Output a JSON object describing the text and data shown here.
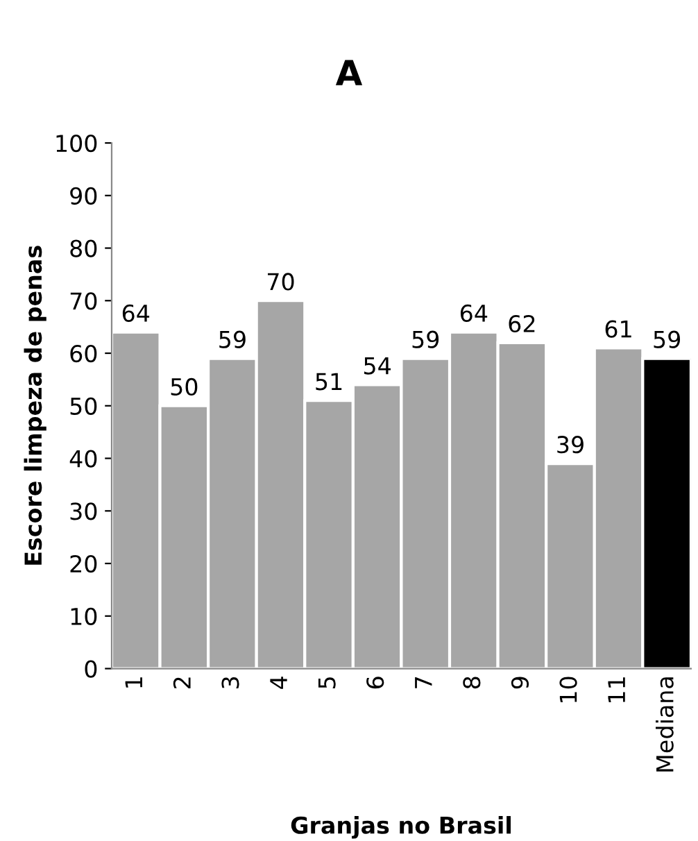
{
  "chart_data": {
    "type": "bar",
    "title": "A",
    "xlabel": "Granjas no Brasil",
    "ylabel": "Escore limpeza de penas",
    "categories": [
      "1",
      "2",
      "3",
      "4",
      "5",
      "6",
      "7",
      "8",
      "9",
      "10",
      "11",
      "Mediana"
    ],
    "values": [
      64,
      50,
      59,
      70,
      51,
      54,
      59,
      64,
      62,
      39,
      61,
      59
    ],
    "colors": [
      "#a6a6a6",
      "#a6a6a6",
      "#a6a6a6",
      "#a6a6a6",
      "#a6a6a6",
      "#a6a6a6",
      "#a6a6a6",
      "#a6a6a6",
      "#a6a6a6",
      "#a6a6a6",
      "#a6a6a6",
      "#000000"
    ],
    "ylim": [
      0,
      100
    ],
    "yticks": [
      0,
      10,
      20,
      30,
      40,
      50,
      60,
      70,
      80,
      90,
      100
    ],
    "grid": false,
    "legend": false,
    "data_labels": true
  }
}
